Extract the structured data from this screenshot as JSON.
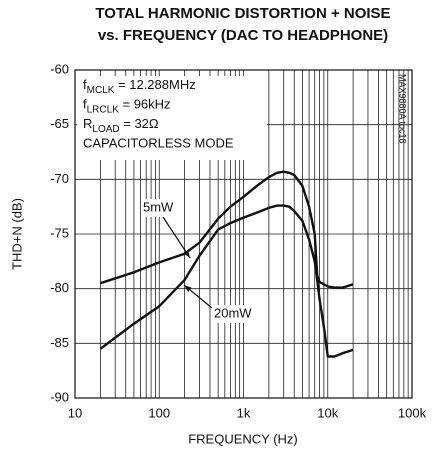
{
  "chart_data": {
    "type": "line",
    "title": [
      "TOTAL HARMONIC DISTORTION + NOISE",
      "vs. FREQUENCY (DAC TO HEADPHONE)"
    ],
    "x_label": "FREQUENCY (Hz)",
    "y_label": "THD+N (dB)",
    "side_note": "MAX9880A toc18",
    "annotations": [
      {
        "main": "f",
        "sub": "MCLK",
        "rest": " = 12.288MHz"
      },
      {
        "main": "f",
        "sub": "LRCLK",
        "rest": " = 96kHz"
      },
      {
        "main": "R",
        "sub": "LOAD",
        "rest": " = 32Ω"
      },
      {
        "main": "CAPACITORLESS MODE"
      }
    ],
    "x_log": true,
    "grid": true,
    "xlim": [
      10,
      100000
    ],
    "xticks": [
      10,
      100,
      {
        "value": 1000,
        "label": "1k"
      },
      {
        "value": 10000,
        "label": "10k"
      },
      {
        "value": 100000,
        "label": "100k"
      }
    ],
    "ylim": [
      -90,
      -60
    ],
    "yticks": [
      -90,
      -85,
      -80,
      -75,
      -70,
      -65,
      -60
    ],
    "x": [
      20,
      50,
      100,
      200,
      300,
      500,
      700,
      1000,
      1500,
      2000,
      2500,
      3000,
      3500,
      4000,
      5000,
      6000,
      7000,
      7500,
      8000,
      9000,
      10000,
      12000,
      15000,
      20000
    ],
    "series": [
      {
        "name": "5mW",
        "color": "#111111",
        "values": [
          -79.5,
          -78.5,
          -77.6,
          -76.8,
          -75.8,
          -73.6,
          -72.5,
          -71.6,
          -70.5,
          -69.8,
          -69.4,
          -69.3,
          -69.4,
          -69.6,
          -70.6,
          -72.5,
          -75,
          -78.8,
          -79.4,
          -79.6,
          -79.8,
          -79.9,
          -79.9,
          -79.6
        ]
      },
      {
        "name": "20mW",
        "color": "#111111",
        "values": [
          -85.5,
          -83.2,
          -81.6,
          -79.2,
          -77,
          -74.6,
          -74,
          -73.5,
          -73,
          -72.6,
          -72.4,
          -72.4,
          -72.5,
          -72.9,
          -73.8,
          -75.5,
          -77.5,
          -79.2,
          -81,
          -83.5,
          -86.2,
          -86.2,
          -85.9,
          -85.6
        ]
      }
    ]
  }
}
